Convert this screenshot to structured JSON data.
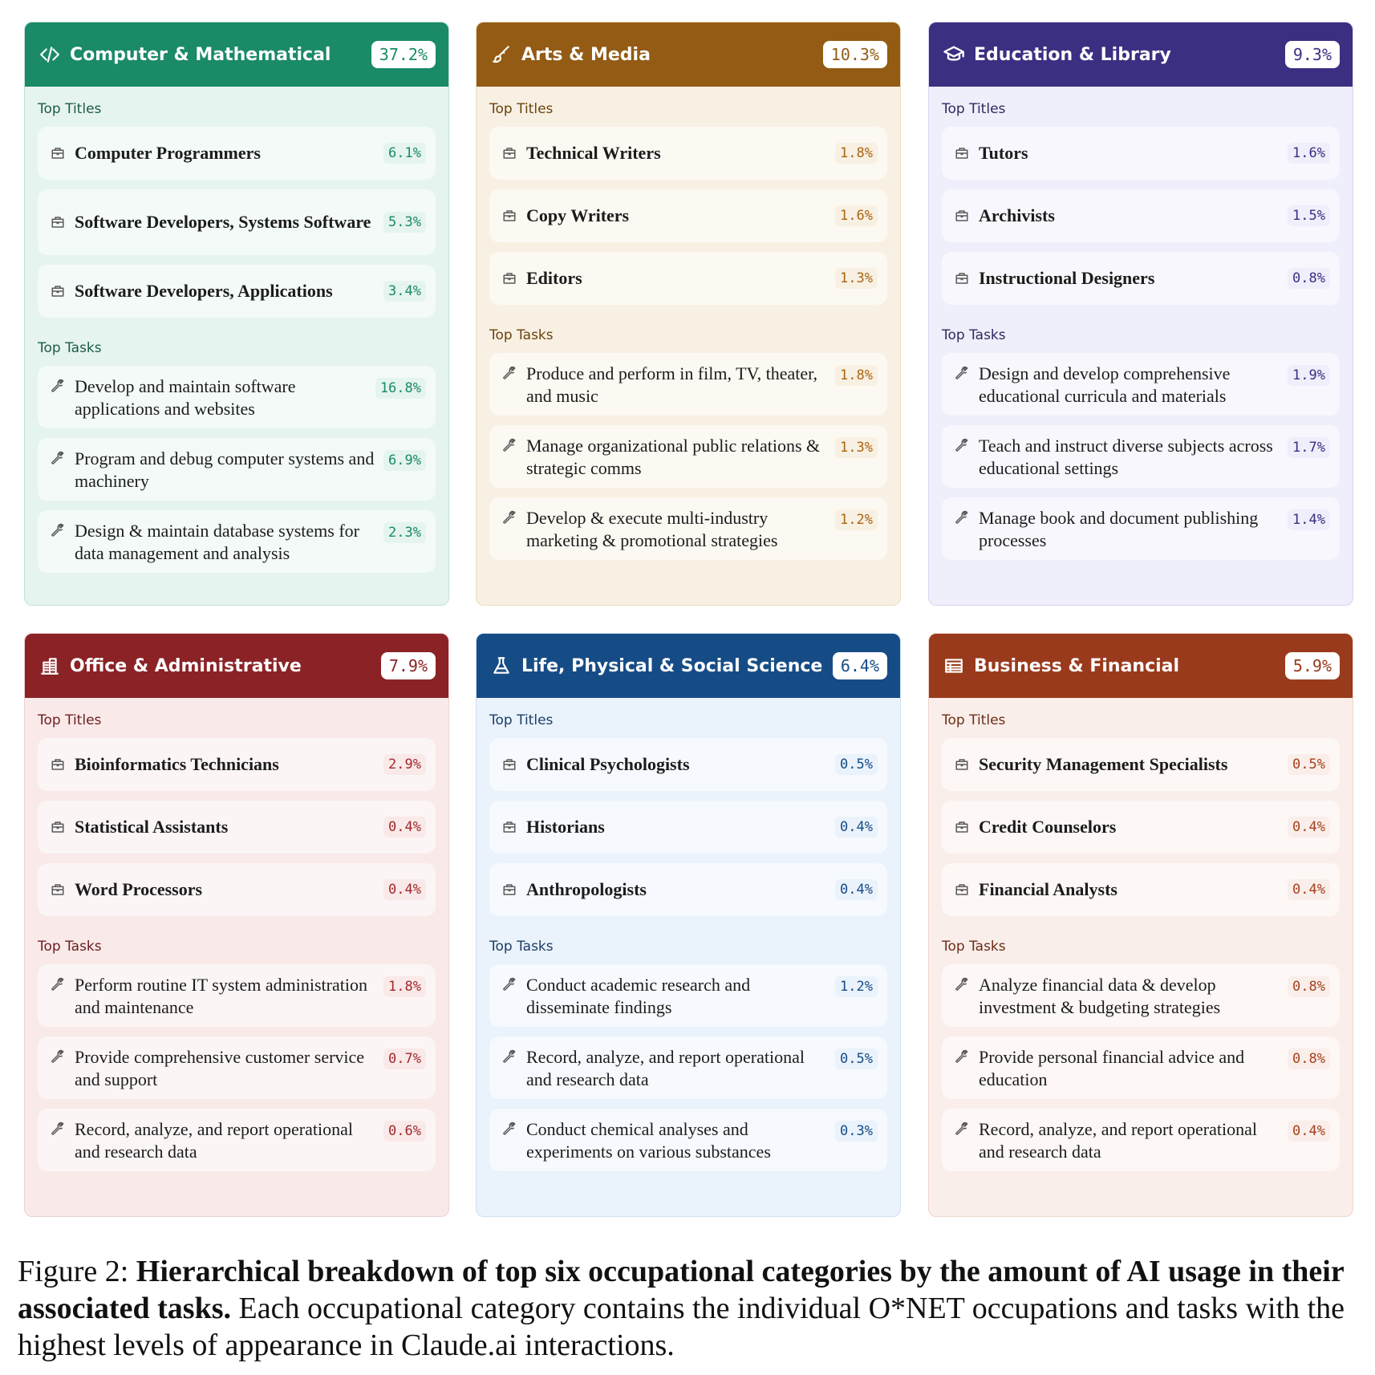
{
  "cards": [
    {
      "title": "Computer & Mathematical",
      "pct": "37.2%",
      "icon": "code-icon",
      "header_color": "#1a8a68",
      "bg": "#e5f4ee",
      "border": "#bfe2d4",
      "accent": "#1a8a68",
      "label_color": "#1d5c47",
      "titles_label": "Top Titles",
      "tasks_label": "Top Tasks",
      "titles": [
        {
          "text": "Computer Programmers",
          "pct": "6.1%"
        },
        {
          "text": "Software Developers, Systems Software",
          "pct": "5.3%"
        },
        {
          "text": "Software Developers, Applications",
          "pct": "3.4%"
        }
      ],
      "tasks": [
        {
          "text": "Develop and maintain software applications and websites",
          "pct": "16.8%"
        },
        {
          "text": "Program and debug computer systems and machinery",
          "pct": "6.9%"
        },
        {
          "text": "Design & maintain database systems for data management and analysis",
          "pct": "2.3%"
        }
      ]
    },
    {
      "title": "Arts & Media",
      "pct": "10.3%",
      "icon": "brush-icon",
      "header_color": "#935b14",
      "bg": "#f8f0e2",
      "border": "#ecdcc0",
      "accent": "#a86512",
      "label_color": "#6b4310",
      "titles_label": "Top Titles",
      "tasks_label": "Top Tasks",
      "titles": [
        {
          "text": "Technical Writers",
          "pct": "1.8%"
        },
        {
          "text": "Copy Writers",
          "pct": "1.6%"
        },
        {
          "text": "Editors",
          "pct": "1.3%"
        }
      ],
      "tasks": [
        {
          "text": "Produce and perform in film, TV, theater, and music",
          "pct": "1.8%"
        },
        {
          "text": "Manage organizational public relations & strategic comms",
          "pct": "1.3%"
        },
        {
          "text": "Develop & execute multi-industry marketing & promotional strategies",
          "pct": "1.2%"
        }
      ]
    },
    {
      "title": "Education & Library",
      "pct": "9.3%",
      "icon": "graduation-cap-icon",
      "header_color": "#3b2f82",
      "bg": "#efeefb",
      "border": "#d8d5f2",
      "accent": "#3b2f82",
      "label_color": "#2e2a5c",
      "titles_label": "Top Titles",
      "tasks_label": "Top Tasks",
      "titles": [
        {
          "text": "Tutors",
          "pct": "1.6%"
        },
        {
          "text": "Archivists",
          "pct": "1.5%"
        },
        {
          "text": "Instructional Designers",
          "pct": "0.8%"
        }
      ],
      "tasks": [
        {
          "text": "Design and develop comprehensive educational curricula and materials",
          "pct": "1.9%"
        },
        {
          "text": "Teach and instruct diverse subjects across educational settings",
          "pct": "1.7%"
        },
        {
          "text": "Manage book and document publishing processes",
          "pct": "1.4%"
        }
      ]
    },
    {
      "title": "Office & Administrative",
      "pct": "7.9%",
      "icon": "building-icon",
      "header_color": "#8b2326",
      "bg": "#f9e9e8",
      "border": "#eed2d0",
      "accent": "#a12a2d",
      "label_color": "#6b2023",
      "titles_label": "Top Titles",
      "tasks_label": "Top Tasks",
      "titles": [
        {
          "text": "Bioinformatics Technicians",
          "pct": "2.9%"
        },
        {
          "text": "Statistical Assistants",
          "pct": "0.4%"
        },
        {
          "text": "Word Processors",
          "pct": "0.4%"
        }
      ],
      "tasks": [
        {
          "text": "Perform routine IT system administration and maintenance",
          "pct": "1.8%"
        },
        {
          "text": "Provide comprehensive customer service and support",
          "pct": "0.7%"
        },
        {
          "text": "Record, analyze, and report operational and research data",
          "pct": "0.6%"
        }
      ]
    },
    {
      "title": "Life, Physical & Social Science",
      "pct": "6.4%",
      "icon": "flask-icon",
      "header_color": "#164c86",
      "bg": "#eaf2fb",
      "border": "#cfdff2",
      "accent": "#164c86",
      "label_color": "#1b3e66",
      "titles_label": "Top Titles",
      "tasks_label": "Top Tasks",
      "titles": [
        {
          "text": "Clinical Psychologists",
          "pct": "0.5%"
        },
        {
          "text": "Historians",
          "pct": "0.4%"
        },
        {
          "text": "Anthropologists",
          "pct": "0.4%"
        }
      ],
      "tasks": [
        {
          "text": "Conduct academic research and disseminate findings",
          "pct": "1.2%"
        },
        {
          "text": "Record, analyze, and report operational and research data",
          "pct": "0.5%"
        },
        {
          "text": "Conduct chemical analyses and experiments on various substances",
          "pct": "0.3%"
        }
      ]
    },
    {
      "title": "Business & Financial",
      "pct": "5.9%",
      "icon": "ledger-icon",
      "header_color": "#9a3a1c",
      "bg": "#faeeea",
      "border": "#efd6cd",
      "accent": "#a6401f",
      "label_color": "#6b2d18",
      "titles_label": "Top Titles",
      "tasks_label": "Top Tasks",
      "titles": [
        {
          "text": "Security Management Specialists",
          "pct": "0.5%"
        },
        {
          "text": "Credit Counselors",
          "pct": "0.4%"
        },
        {
          "text": "Financial Analysts",
          "pct": "0.4%"
        }
      ],
      "tasks": [
        {
          "text": "Analyze financial data & develop investment & budgeting strategies",
          "pct": "0.8%"
        },
        {
          "text": "Provide personal financial advice and education",
          "pct": "0.8%"
        },
        {
          "text": "Record, analyze, and report operational and research data",
          "pct": "0.4%"
        }
      ]
    }
  ],
  "caption": {
    "prefix": "Figure 2: ",
    "bold": "Hierarchical breakdown of top six occupational categories by the amount of AI usage in their associated tasks.",
    "rest": " Each occupational category contains the individual O*NET occupations and tasks with the highest levels of appearance in Claude.ai interactions."
  }
}
